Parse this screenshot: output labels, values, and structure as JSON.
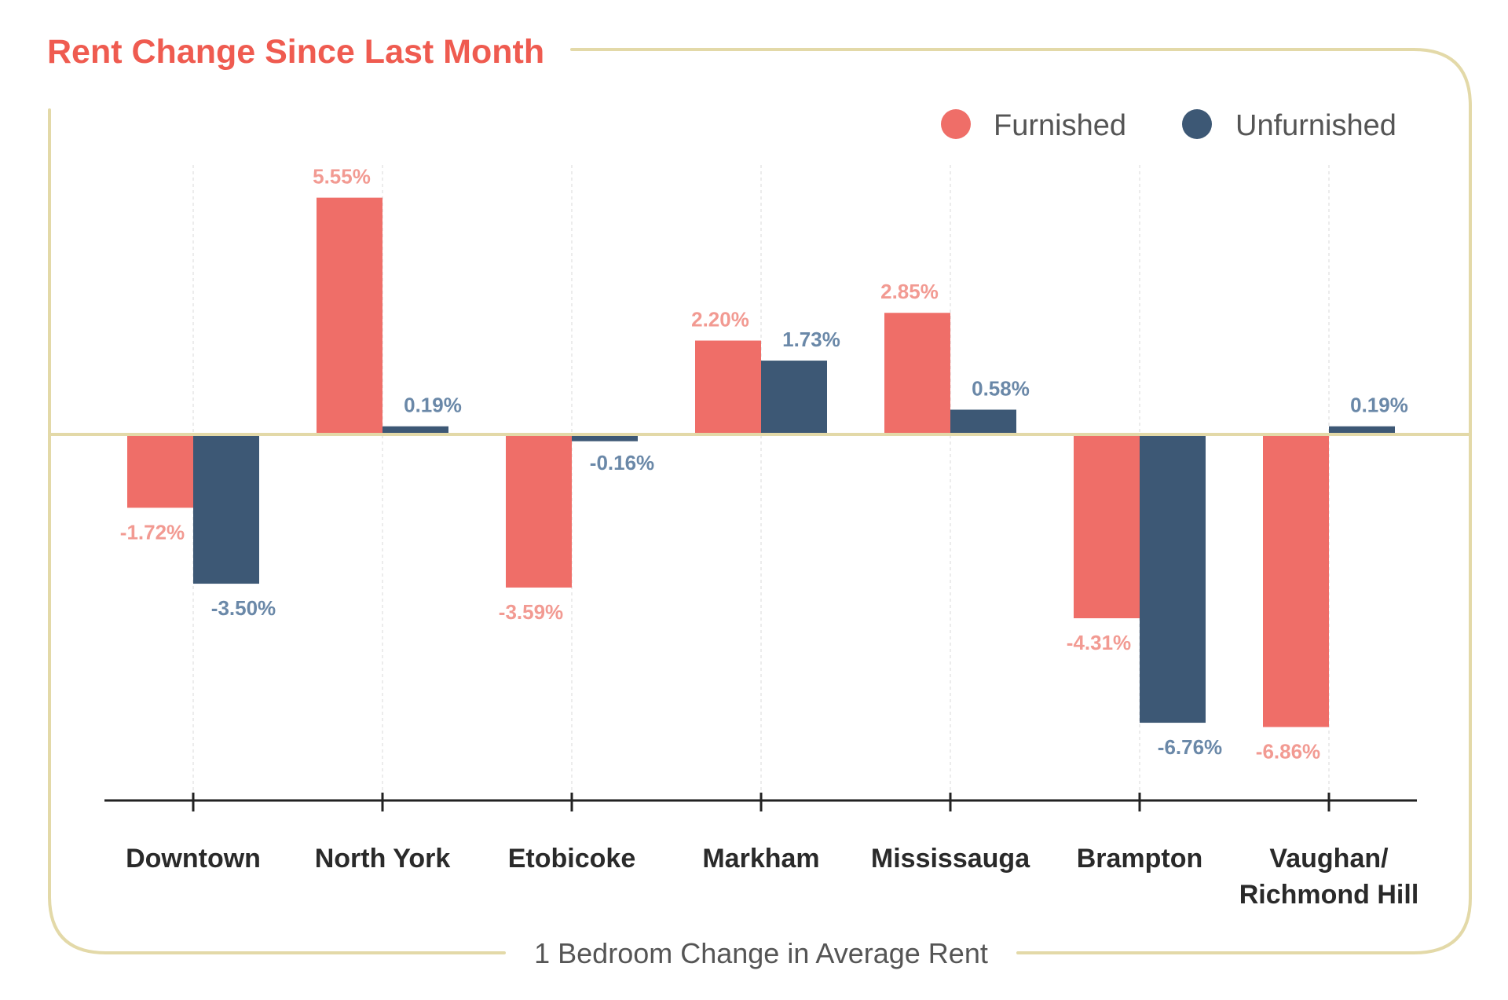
{
  "chart_data": {
    "type": "bar",
    "title": "Rent Change Since Last Month",
    "subtitle": "1 Bedroom Change in Average Rent",
    "xlabel": "",
    "ylabel": "",
    "unit": "%",
    "ylim": [
      -8,
      6
    ],
    "categories": [
      [
        "Downtown"
      ],
      [
        "North York"
      ],
      [
        "Etobicoke"
      ],
      [
        "Markham"
      ],
      [
        "Mississauga"
      ],
      [
        "Brampton"
      ],
      [
        "Vaughan/",
        "Richmond Hill"
      ]
    ],
    "series": [
      {
        "name": "Furnished",
        "color": "#EF6E68",
        "label_color": "#F29A92",
        "values": [
          -1.72,
          5.55,
          -3.59,
          2.2,
          2.85,
          -4.31,
          -6.86
        ],
        "labels": [
          "-1.72%",
          "5.55%",
          "-3.59%",
          "2.20%",
          "2.85%",
          "-4.31%",
          "-6.86%"
        ]
      },
      {
        "name": "Unfurnished",
        "color": "#3D5875",
        "label_color": "#6A88A8",
        "values": [
          -3.5,
          0.19,
          -0.16,
          1.73,
          0.58,
          -6.76,
          0.19
        ],
        "labels": [
          "-3.50%",
          "0.19%",
          "-0.16%",
          "1.73%",
          "0.58%",
          "-6.76%",
          "0.19%"
        ]
      }
    ],
    "legend": "top-right",
    "grid": false
  },
  "colors": {
    "title": "#EF5B50",
    "frame": "#E3D9A8",
    "zero_line": "#E3D9A8",
    "axis": "#222222",
    "category_text": "#2A2A2A",
    "subtitle_text": "#555555",
    "legend_text": "#555555",
    "dashed_guides": "#D8D8D8"
  }
}
